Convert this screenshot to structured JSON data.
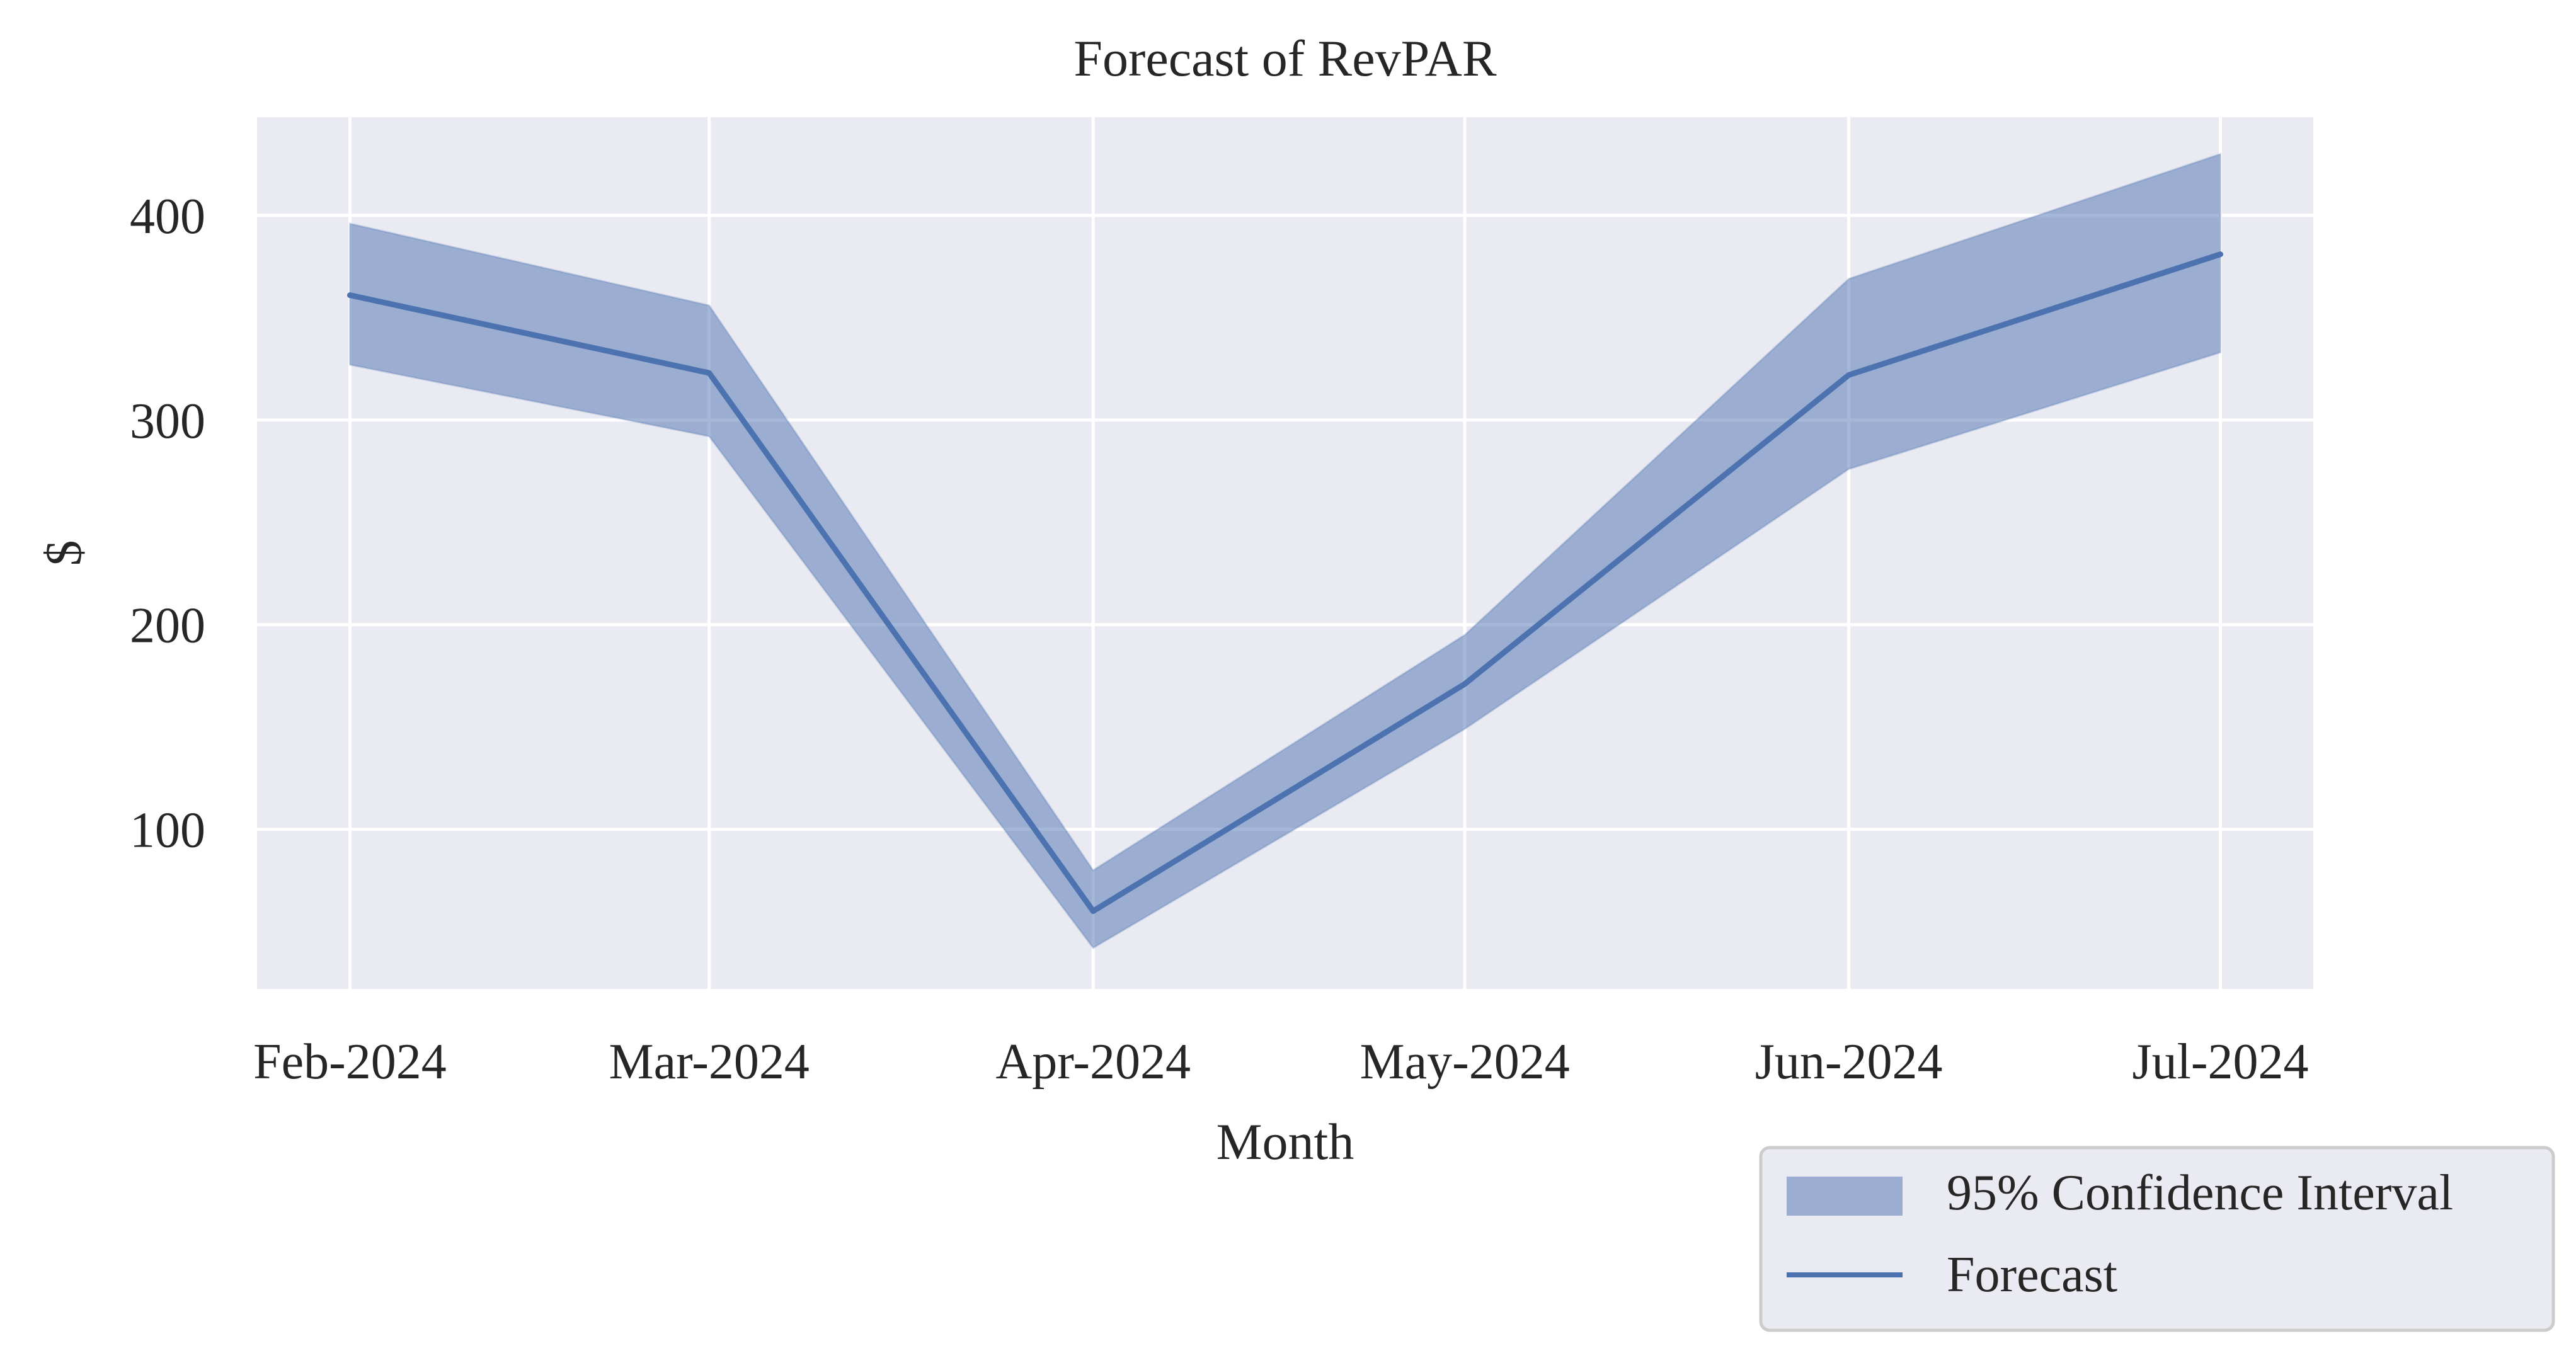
{
  "chart_data": {
    "type": "line",
    "title": "Forecast of RevPAR",
    "xlabel": "Month",
    "ylabel": "$",
    "categories": [
      "Feb-2024",
      "Mar-2024",
      "Apr-2024",
      "May-2024",
      "Jun-2024",
      "Jul-2024"
    ],
    "x_positions": [
      0,
      29,
      60,
      90,
      121,
      151
    ],
    "x_range": [
      -7.5,
      158.5
    ],
    "ylim": [
      22,
      448
    ],
    "yticks": [
      100,
      200,
      300,
      400
    ],
    "grid": true,
    "legend_position": "bottom-right, outside plot",
    "series": [
      {
        "name": "Forecast",
        "type": "line",
        "color": "#4c72b0",
        "values": [
          361,
          323,
          60,
          171,
          322,
          381
        ]
      },
      {
        "name": "95% Confidence Interval",
        "type": "band",
        "color": "#4c72b0",
        "opacity": 0.5,
        "lower": [
          327,
          292,
          42,
          149,
          276,
          333
        ],
        "upper": [
          396,
          356,
          80,
          195,
          369,
          430
        ]
      }
    ],
    "colors": {
      "plot_background": "#eaeaf2",
      "grid": "#ffffff",
      "legend_background": "#eaeaf2",
      "legend_border": "#cccccc"
    }
  }
}
